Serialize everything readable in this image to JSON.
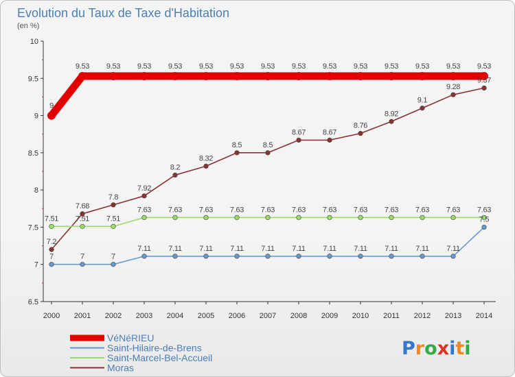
{
  "chart_data": {
    "type": "line",
    "title": "Evolution du Taux de Taxe d'Habitation",
    "ylabel": "(en %)",
    "xlabel": "",
    "ylim": [
      6.5,
      10
    ],
    "yticks": [
      6.5,
      7,
      7.5,
      8,
      8.5,
      9,
      9.5,
      10
    ],
    "ytick_labels": [
      "6.5",
      "7",
      "7.5",
      "8",
      "8.5",
      "9",
      "9.5",
      "10"
    ],
    "grid": false,
    "legend_position": "bottom-left",
    "x": [
      "2000",
      "2001",
      "2002",
      "2003",
      "2004",
      "2005",
      "2006",
      "2007",
      "2008",
      "2009",
      "2010",
      "2011",
      "2012",
      "2013",
      "2014"
    ],
    "series": [
      {
        "name": "VéNéRIEU",
        "color": "#e00000",
        "values": [
          9.0,
          9.53,
          9.53,
          9.53,
          9.53,
          9.53,
          9.53,
          9.53,
          9.53,
          9.53,
          9.53,
          9.53,
          9.53,
          9.53,
          9.53
        ],
        "labels": [
          "9",
          "9.53",
          "9.53",
          "9.53",
          "9.53",
          "9.53",
          "9.53",
          "9.53",
          "9.53",
          "9.53",
          "9.53",
          "9.53",
          "9.53",
          "9.53",
          "9.53"
        ]
      },
      {
        "name": "Saint-Hilaire-de-Brens",
        "color": "#6699cc",
        "values": [
          7.0,
          7.0,
          7.0,
          7.11,
          7.11,
          7.11,
          7.11,
          7.11,
          7.11,
          7.11,
          7.11,
          7.11,
          7.11,
          7.11,
          7.5
        ],
        "labels": [
          "7",
          "7",
          "7",
          "7.11",
          "7.11",
          "7.11",
          "7.11",
          "7.11",
          "7.11",
          "7.11",
          "7.11",
          "7.11",
          "7.11",
          "7.11",
          "7.5"
        ]
      },
      {
        "name": "Saint-Marcel-Bel-Accueil",
        "color": "#99dd66",
        "values": [
          7.51,
          7.51,
          7.51,
          7.63,
          7.63,
          7.63,
          7.63,
          7.63,
          7.63,
          7.63,
          7.63,
          7.63,
          7.63,
          7.63,
          7.63
        ],
        "labels": [
          "7.51",
          "7.51",
          "7.51",
          "7.63",
          "7.63",
          "7.63",
          "7.63",
          "7.63",
          "7.63",
          "7.63",
          "7.63",
          "7.63",
          "7.63",
          "7.63",
          "7.63"
        ]
      },
      {
        "name": "Moras",
        "color": "#883333",
        "values": [
          7.2,
          7.68,
          7.8,
          7.92,
          8.2,
          8.32,
          8.5,
          8.5,
          8.67,
          8.67,
          8.76,
          8.92,
          9.1,
          9.28,
          9.37
        ],
        "labels": [
          "7.2",
          "7.68",
          "7.8",
          "7.92",
          "8.2",
          "8.32",
          "8.5",
          "8.5",
          "8.67",
          "8.67",
          "8.76",
          "8.92",
          "9.1",
          "9.28",
          "9.37"
        ]
      }
    ]
  },
  "logo": {
    "text": "Proxiti",
    "letters": [
      {
        "ch": "P",
        "color": "#3377cc"
      },
      {
        "ch": "r",
        "color": "#ee8822"
      },
      {
        "ch": "o",
        "color": "#33aa44"
      },
      {
        "ch": "x",
        "color": "#dd3322"
      },
      {
        "ch": "i",
        "color": "#3377cc"
      },
      {
        "ch": "t",
        "color": "#ee8822"
      },
      {
        "ch": "i",
        "color": "#33aa44"
      }
    ]
  }
}
